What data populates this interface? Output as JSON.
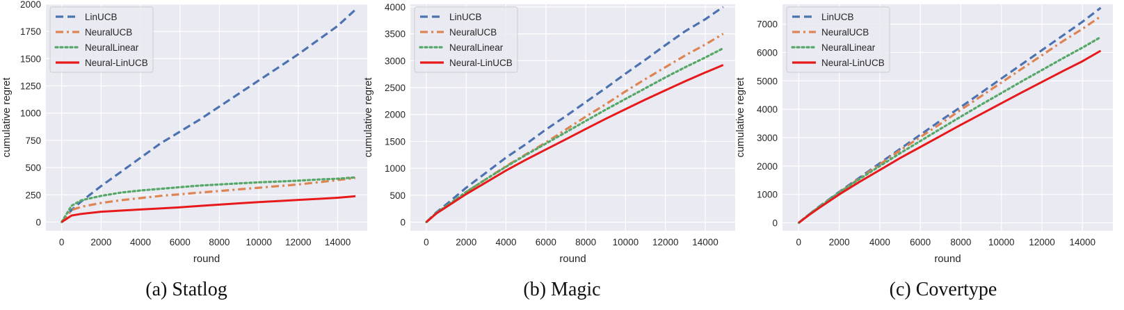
{
  "colors": {
    "panel_bg": "#EAEAF2",
    "grid": "#FFFFFF",
    "LinUCB": "#4C72B0",
    "NeuralUCB": "#DD8452",
    "NeuralLinear": "#55A868",
    "Neural-LinUCB": "#E8191B"
  },
  "chart_data": [
    {
      "type": "line",
      "caption": "(a) Statlog",
      "xlabel": "round",
      "ylabel": "cumulative regret",
      "xlim": [
        -800,
        15500
      ],
      "ylim": [
        -80,
        2000
      ],
      "xticks": [
        0,
        2000,
        4000,
        6000,
        8000,
        10000,
        12000,
        14000
      ],
      "yticks": [
        0,
        250,
        500,
        750,
        1000,
        1250,
        1500,
        1750,
        2000
      ],
      "grid": true,
      "legend_position": "upper-left",
      "x": [
        0,
        500,
        1000,
        2000,
        3000,
        4000,
        5000,
        6000,
        7000,
        8000,
        9000,
        10000,
        11000,
        12000,
        13000,
        14000,
        14900
      ],
      "series": [
        {
          "name": "LinUCB",
          "style": "dashed",
          "values": [
            0,
            110,
            190,
            330,
            460,
            590,
            720,
            830,
            940,
            1060,
            1180,
            1300,
            1420,
            1540,
            1670,
            1800,
            1950
          ]
        },
        {
          "name": "NeuralUCB",
          "style": "dashdot",
          "values": [
            0,
            110,
            140,
            175,
            200,
            220,
            240,
            255,
            270,
            285,
            300,
            315,
            330,
            345,
            365,
            385,
            405
          ]
        },
        {
          "name": "NeuralLinear",
          "style": "dotted",
          "values": [
            0,
            150,
            200,
            240,
            270,
            290,
            305,
            320,
            335,
            345,
            355,
            365,
            372,
            380,
            390,
            398,
            410
          ]
        },
        {
          "name": "Neural-LinUCB",
          "style": "solid",
          "values": [
            0,
            60,
            75,
            95,
            105,
            115,
            125,
            135,
            148,
            160,
            172,
            183,
            193,
            203,
            213,
            223,
            237
          ]
        }
      ]
    },
    {
      "type": "line",
      "caption": "(b) Magic",
      "xlabel": "round",
      "ylabel": "cumulative regret",
      "xlim": [
        -800,
        15500
      ],
      "ylim": [
        -160,
        4050
      ],
      "xticks": [
        0,
        2000,
        4000,
        6000,
        8000,
        10000,
        12000,
        14000
      ],
      "yticks": [
        0,
        500,
        1000,
        1500,
        2000,
        2500,
        3000,
        3500,
        4000
      ],
      "grid": true,
      "legend_position": "upper-left",
      "x": [
        0,
        500,
        1000,
        2000,
        3000,
        4000,
        5000,
        6000,
        7000,
        8000,
        9000,
        10000,
        11000,
        12000,
        13000,
        14000,
        14900
      ],
      "series": [
        {
          "name": "LinUCB",
          "style": "dashed",
          "values": [
            0,
            180,
            330,
            640,
            920,
            1200,
            1450,
            1720,
            1970,
            2230,
            2490,
            2760,
            3020,
            3290,
            3550,
            3770,
            4000
          ]
        },
        {
          "name": "NeuralUCB",
          "style": "dashdot",
          "values": [
            0,
            160,
            290,
            560,
            800,
            1040,
            1260,
            1480,
            1720,
            1960,
            2190,
            2430,
            2660,
            2880,
            3100,
            3300,
            3500
          ]
        },
        {
          "name": "NeuralLinear",
          "style": "dotted",
          "values": [
            0,
            170,
            300,
            560,
            800,
            1030,
            1250,
            1460,
            1670,
            1880,
            2090,
            2290,
            2490,
            2690,
            2880,
            3060,
            3230
          ]
        },
        {
          "name": "Neural-LinUCB",
          "style": "solid",
          "values": [
            0,
            160,
            280,
            520,
            740,
            960,
            1160,
            1350,
            1540,
            1730,
            1920,
            2100,
            2280,
            2450,
            2620,
            2780,
            2920
          ]
        }
      ]
    },
    {
      "type": "line",
      "caption": "(c) Covertype",
      "xlabel": "round",
      "ylabel": "cumulative regret",
      "xlim": [
        -800,
        15500
      ],
      "ylim": [
        -280,
        7700
      ],
      "xticks": [
        0,
        2000,
        4000,
        6000,
        8000,
        10000,
        12000,
        14000
      ],
      "yticks": [
        0,
        1000,
        2000,
        3000,
        4000,
        5000,
        6000,
        7000
      ],
      "grid": true,
      "legend_position": "upper-left",
      "x": [
        0,
        500,
        1000,
        2000,
        3000,
        4000,
        5000,
        6000,
        7000,
        8000,
        9000,
        10000,
        11000,
        12000,
        13000,
        14000,
        14900
      ],
      "series": [
        {
          "name": "LinUCB",
          "style": "dashed",
          "values": [
            0,
            290,
            570,
            1090,
            1590,
            2100,
            2600,
            3100,
            3600,
            4080,
            4580,
            5080,
            5580,
            6080,
            6580,
            7080,
            7570
          ]
        },
        {
          "name": "NeuralUCB",
          "style": "dashdot",
          "values": [
            0,
            280,
            550,
            1070,
            1560,
            2060,
            2550,
            3020,
            3490,
            3980,
            4460,
            4940,
            5420,
            5900,
            6380,
            6830,
            7270
          ]
        },
        {
          "name": "NeuralLinear",
          "style": "dotted",
          "values": [
            0,
            290,
            560,
            1070,
            1540,
            2000,
            2450,
            2880,
            3310,
            3740,
            4160,
            4570,
            4980,
            5380,
            5780,
            6170,
            6540
          ]
        },
        {
          "name": "Neural-LinUCB",
          "style": "solid",
          "values": [
            0,
            270,
            520,
            1000,
            1440,
            1860,
            2280,
            2670,
            3060,
            3450,
            3830,
            4210,
            4590,
            4960,
            5330,
            5690,
            6060
          ]
        }
      ]
    }
  ]
}
